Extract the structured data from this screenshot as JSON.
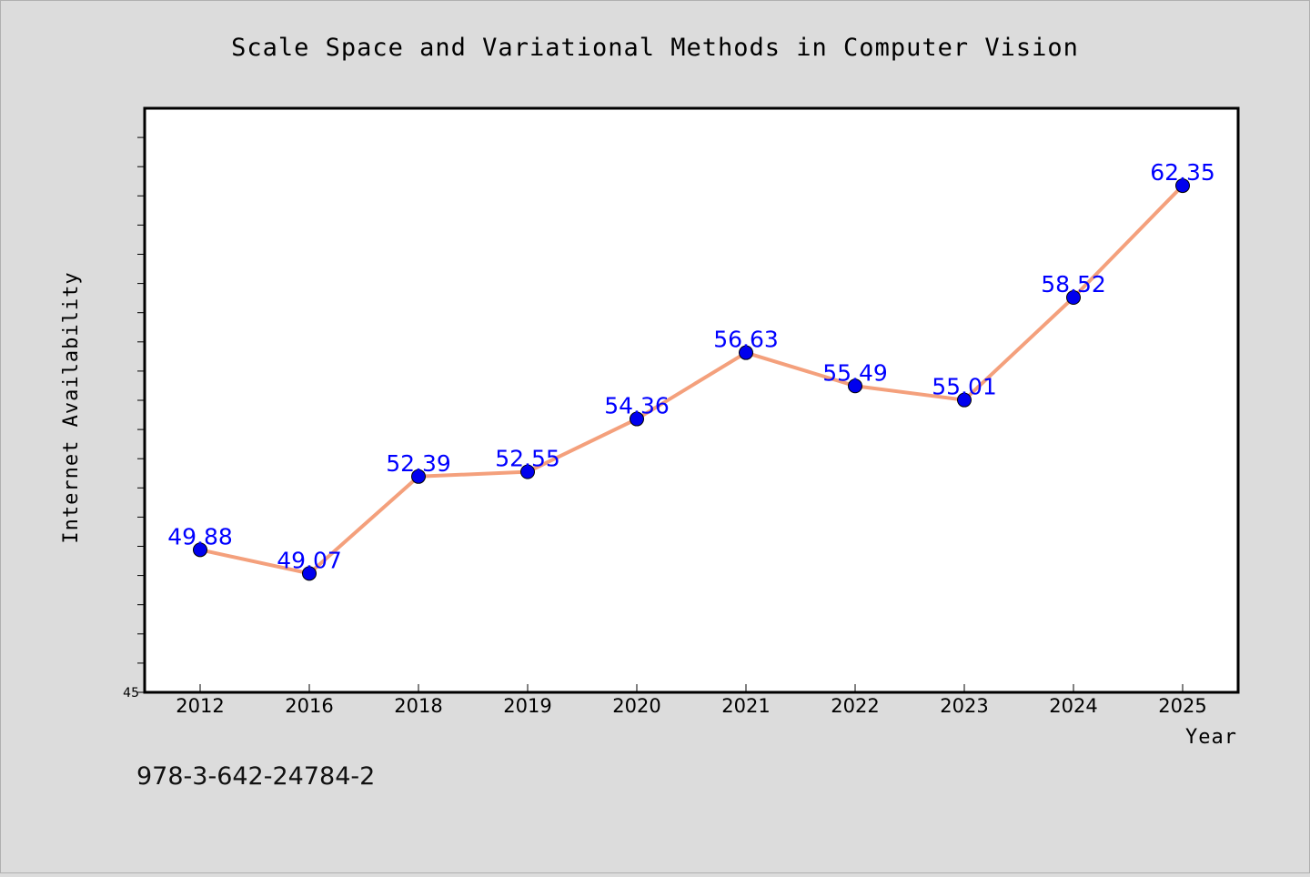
{
  "chart_data": {
    "type": "line",
    "title": "Scale Space and Variational Methods in Computer Vision",
    "xlabel": "Year",
    "ylabel": "Internet Availability",
    "categories": [
      "2012",
      "2016",
      "2018",
      "2019",
      "2020",
      "2021",
      "2022",
      "2023",
      "2024",
      "2025"
    ],
    "series": [
      {
        "values": [
          49.88,
          49.07,
          52.39,
          52.55,
          54.36,
          56.63,
          55.49,
          55.01,
          58.52,
          62.35
        ],
        "labels": [
          "49.88",
          "49.07",
          "52.39",
          "52.55",
          "54.36",
          "56.63",
          "55.49",
          "55.01",
          "58.52",
          "62.35"
        ],
        "line_color": "#f4a07c",
        "marker_color": "#0000ee",
        "label_color": "#0000ff"
      }
    ],
    "ylim": [
      45,
      65
    ],
    "yticks_labeled": [
      "45"
    ],
    "grid": false,
    "legend": "none"
  },
  "footer": {
    "isbn": "978-3-642-24784-2"
  },
  "colors": {
    "background": "#dcdcdc",
    "plot_background": "#ffffff"
  }
}
